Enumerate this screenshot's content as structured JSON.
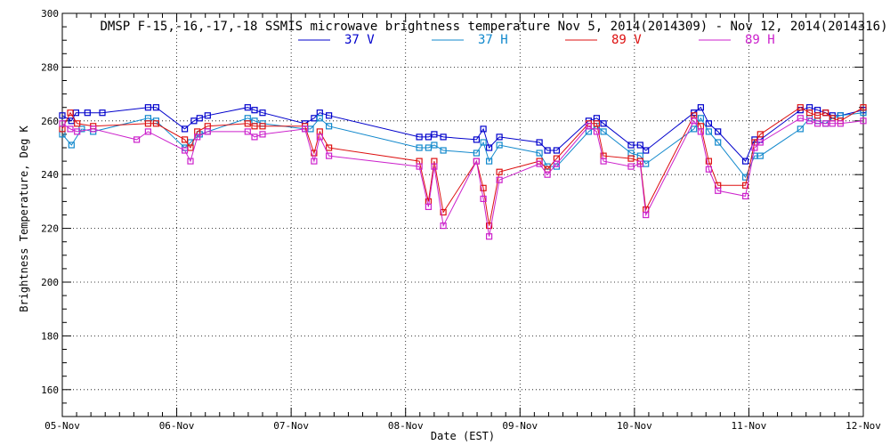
{
  "chart_data": {
    "type": "line",
    "title": "DMSP F-15,-16,-17,-18 SSMIS microwave brightness temperature Nov  5, 2014(2014309) - Nov 12, 2014(2014316)",
    "xlabel": "Date (EST)",
    "ylabel": "Brightness Temperature, Deg K",
    "xlim": [
      0,
      7
    ],
    "ylim": [
      150,
      300
    ],
    "yticks": [
      160,
      180,
      200,
      220,
      240,
      260,
      280,
      300
    ],
    "xtick_labels": [
      "05-Nov",
      "06-Nov",
      "07-Nov",
      "08-Nov",
      "09-Nov",
      "10-Nov",
      "11-Nov",
      "12-Nov"
    ],
    "grid": true,
    "legend_position": "top-center",
    "series": [
      {
        "name": "37 V",
        "color": "#0000cc",
        "points": [
          [
            0.0,
            262
          ],
          [
            0.08,
            260
          ],
          [
            0.12,
            263
          ],
          [
            0.22,
            263
          ],
          [
            0.35,
            263
          ],
          [
            0.75,
            265
          ],
          [
            0.82,
            265
          ],
          [
            1.07,
            257
          ],
          [
            1.15,
            260
          ],
          [
            1.2,
            261
          ],
          [
            1.27,
            262
          ],
          [
            1.62,
            265
          ],
          [
            1.68,
            264
          ],
          [
            1.75,
            263
          ],
          [
            2.12,
            259
          ],
          [
            2.2,
            261
          ],
          [
            2.25,
            263
          ],
          [
            2.33,
            262
          ],
          [
            3.12,
            254
          ],
          [
            3.2,
            254
          ],
          [
            3.25,
            255
          ],
          [
            3.33,
            254
          ],
          [
            3.62,
            253
          ],
          [
            3.68,
            257
          ],
          [
            3.73,
            250
          ],
          [
            3.82,
            254
          ],
          [
            4.17,
            252
          ],
          [
            4.24,
            249
          ],
          [
            4.32,
            249
          ],
          [
            4.6,
            260
          ],
          [
            4.67,
            261
          ],
          [
            4.73,
            259
          ],
          [
            4.97,
            251
          ],
          [
            5.05,
            251
          ],
          [
            5.1,
            249
          ],
          [
            5.52,
            263
          ],
          [
            5.58,
            265
          ],
          [
            5.65,
            259
          ],
          [
            5.73,
            256
          ],
          [
            5.97,
            245
          ],
          [
            6.05,
            253
          ],
          [
            6.1,
            253
          ],
          [
            6.45,
            264
          ],
          [
            6.53,
            265
          ],
          [
            6.6,
            264
          ],
          [
            6.67,
            263
          ],
          [
            6.73,
            262
          ],
          [
            6.8,
            262
          ],
          [
            7.0,
            264
          ]
        ]
      },
      {
        "name": "37 H",
        "color": "#1188cc",
        "points": [
          [
            0.0,
            255
          ],
          [
            0.08,
            251
          ],
          [
            0.17,
            257
          ],
          [
            0.27,
            256
          ],
          [
            0.75,
            261
          ],
          [
            0.82,
            260
          ],
          [
            1.07,
            250
          ],
          [
            1.12,
            252
          ],
          [
            1.2,
            255
          ],
          [
            1.27,
            256
          ],
          [
            1.62,
            261
          ],
          [
            1.68,
            260
          ],
          [
            1.75,
            259
          ],
          [
            2.12,
            257
          ],
          [
            2.17,
            257
          ],
          [
            2.25,
            261
          ],
          [
            2.33,
            258
          ],
          [
            3.12,
            250
          ],
          [
            3.2,
            250
          ],
          [
            3.25,
            251
          ],
          [
            3.33,
            249
          ],
          [
            3.62,
            248
          ],
          [
            3.68,
            252
          ],
          [
            3.73,
            245
          ],
          [
            3.82,
            251
          ],
          [
            4.17,
            248
          ],
          [
            4.24,
            243
          ],
          [
            4.32,
            243
          ],
          [
            4.6,
            256
          ],
          [
            4.67,
            258
          ],
          [
            4.73,
            256
          ],
          [
            4.97,
            248
          ],
          [
            5.05,
            247
          ],
          [
            5.1,
            244
          ],
          [
            5.52,
            257
          ],
          [
            5.58,
            261
          ],
          [
            5.65,
            256
          ],
          [
            5.73,
            252
          ],
          [
            5.97,
            239
          ],
          [
            6.05,
            247
          ],
          [
            6.1,
            247
          ],
          [
            6.45,
            257
          ],
          [
            6.53,
            261
          ],
          [
            6.6,
            260
          ],
          [
            6.67,
            259
          ],
          [
            6.73,
            261
          ],
          [
            6.8,
            262
          ],
          [
            7.0,
            263
          ]
        ]
      },
      {
        "name": "89 V",
        "color": "#dd1111",
        "points": [
          [
            0.0,
            257
          ],
          [
            0.07,
            263
          ],
          [
            0.13,
            259
          ],
          [
            0.27,
            258
          ],
          [
            0.75,
            259
          ],
          [
            0.82,
            259
          ],
          [
            1.07,
            253
          ],
          [
            1.12,
            250
          ],
          [
            1.18,
            256
          ],
          [
            1.27,
            258
          ],
          [
            1.62,
            259
          ],
          [
            1.68,
            258
          ],
          [
            1.75,
            258
          ],
          [
            2.12,
            258
          ],
          [
            2.2,
            248
          ],
          [
            2.25,
            256
          ],
          [
            2.33,
            250
          ],
          [
            3.12,
            245
          ],
          [
            3.2,
            230
          ],
          [
            3.25,
            245
          ],
          [
            3.33,
            226
          ],
          [
            3.62,
            245
          ],
          [
            3.68,
            235
          ],
          [
            3.73,
            221
          ],
          [
            3.82,
            241
          ],
          [
            4.17,
            245
          ],
          [
            4.24,
            242
          ],
          [
            4.32,
            246
          ],
          [
            4.6,
            259
          ],
          [
            4.67,
            259
          ],
          [
            4.73,
            247
          ],
          [
            4.97,
            246
          ],
          [
            5.05,
            245
          ],
          [
            5.1,
            227
          ],
          [
            5.52,
            262
          ],
          [
            5.58,
            258
          ],
          [
            5.65,
            245
          ],
          [
            5.73,
            236
          ],
          [
            5.97,
            236
          ],
          [
            6.05,
            252
          ],
          [
            6.1,
            255
          ],
          [
            6.45,
            265
          ],
          [
            6.53,
            263
          ],
          [
            6.6,
            262
          ],
          [
            6.67,
            263
          ],
          [
            6.73,
            261
          ],
          [
            6.8,
            260
          ],
          [
            7.0,
            265
          ]
        ]
      },
      {
        "name": "89 H",
        "color": "#cc22cc",
        "points": [
          [
            0.0,
            259
          ],
          [
            0.07,
            257
          ],
          [
            0.13,
            256
          ],
          [
            0.27,
            257
          ],
          [
            0.65,
            253
          ],
          [
            0.75,
            256
          ],
          [
            1.07,
            249
          ],
          [
            1.12,
            245
          ],
          [
            1.18,
            254
          ],
          [
            1.27,
            256
          ],
          [
            1.62,
            256
          ],
          [
            1.68,
            254
          ],
          [
            1.75,
            255
          ],
          [
            2.12,
            257
          ],
          [
            2.2,
            245
          ],
          [
            2.25,
            254
          ],
          [
            2.33,
            247
          ],
          [
            3.12,
            243
          ],
          [
            3.2,
            228
          ],
          [
            3.25,
            243
          ],
          [
            3.33,
            221
          ],
          [
            3.62,
            245
          ],
          [
            3.68,
            231
          ],
          [
            3.73,
            217
          ],
          [
            3.82,
            238
          ],
          [
            4.17,
            244
          ],
          [
            4.24,
            240
          ],
          [
            4.32,
            244
          ],
          [
            4.6,
            258
          ],
          [
            4.67,
            256
          ],
          [
            4.73,
            245
          ],
          [
            4.97,
            243
          ],
          [
            5.05,
            244
          ],
          [
            5.1,
            225
          ],
          [
            5.52,
            260
          ],
          [
            5.58,
            256
          ],
          [
            5.65,
            242
          ],
          [
            5.73,
            234
          ],
          [
            5.97,
            232
          ],
          [
            6.05,
            250
          ],
          [
            6.1,
            252
          ],
          [
            6.45,
            261
          ],
          [
            6.53,
            260
          ],
          [
            6.6,
            259
          ],
          [
            6.67,
            259
          ],
          [
            6.73,
            259
          ],
          [
            6.8,
            259
          ],
          [
            7.0,
            260
          ]
        ]
      }
    ]
  }
}
